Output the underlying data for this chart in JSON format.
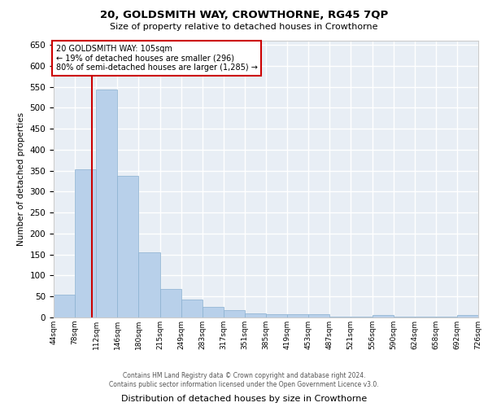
{
  "title": "20, GOLDSMITH WAY, CROWTHORNE, RG45 7QP",
  "subtitle": "Size of property relative to detached houses in Crowthorne",
  "xlabel": "Distribution of detached houses by size in Crowthorne",
  "ylabel": "Number of detached properties",
  "bar_color": "#b8d0ea",
  "bar_edge_color": "#8ab0d0",
  "background_color": "#e8eef5",
  "grid_color": "#ffffff",
  "annotation_box_color": "#cc0000",
  "annotation_line_color": "#cc0000",
  "ylim": [
    0,
    660
  ],
  "yticks": [
    0,
    50,
    100,
    150,
    200,
    250,
    300,
    350,
    400,
    450,
    500,
    550,
    600,
    650
  ],
  "bin_edges": [
    44,
    78,
    112,
    146,
    180,
    215,
    249,
    283,
    317,
    351,
    385,
    419,
    453,
    487,
    521,
    556,
    590,
    624,
    658,
    692,
    726
  ],
  "bin_labels": [
    "44sqm",
    "78sqm",
    "112sqm",
    "146sqm",
    "180sqm",
    "215sqm",
    "249sqm",
    "283sqm",
    "317sqm",
    "351sqm",
    "385sqm",
    "419sqm",
    "453sqm",
    "487sqm",
    "521sqm",
    "556sqm",
    "590sqm",
    "624sqm",
    "658sqm",
    "692sqm",
    "726sqm"
  ],
  "bar_heights": [
    55,
    353,
    543,
    338,
    155,
    68,
    42,
    25,
    18,
    10,
    8,
    8,
    8,
    1,
    1,
    5,
    1,
    1,
    1,
    5
  ],
  "property_size": 105,
  "annotation_text_line1": "20 GOLDSMITH WAY: 105sqm",
  "annotation_text_line2": "← 19% of detached houses are smaller (296)",
  "annotation_text_line3": "80% of semi-detached houses are larger (1,285) →",
  "footer_line1": "Contains HM Land Registry data © Crown copyright and database right 2024.",
  "footer_line2": "Contains public sector information licensed under the Open Government Licence v3.0."
}
